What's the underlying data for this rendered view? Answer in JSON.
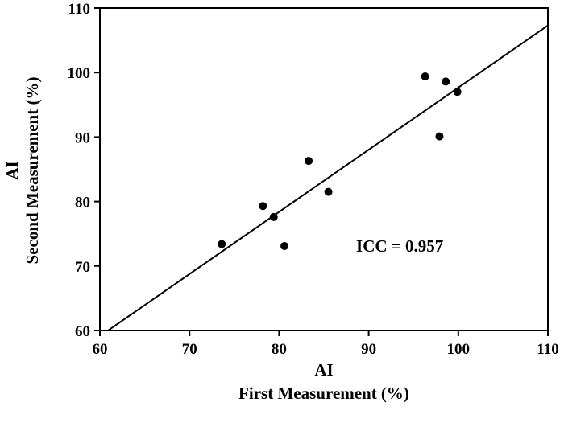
{
  "chart_data": {
    "type": "scatter",
    "title": "",
    "xlabel_line1": "AI",
    "xlabel_line2": "First Measurement (%)",
    "ylabel_line1": "AI",
    "ylabel_line2": "Second Measurement (%)",
    "xlim": [
      60,
      110
    ],
    "ylim": [
      60,
      110
    ],
    "x_ticks": [
      60,
      70,
      80,
      90,
      100,
      110
    ],
    "y_ticks": [
      60,
      70,
      80,
      90,
      100,
      110
    ],
    "grid": false,
    "legend": "none",
    "points": [
      {
        "x": 73.6,
        "y": 73.4
      },
      {
        "x": 78.2,
        "y": 79.3
      },
      {
        "x": 79.4,
        "y": 77.6
      },
      {
        "x": 80.6,
        "y": 73.1
      },
      {
        "x": 83.3,
        "y": 86.3
      },
      {
        "x": 85.5,
        "y": 81.5
      },
      {
        "x": 96.3,
        "y": 99.4
      },
      {
        "x": 97.9,
        "y": 90.1
      },
      {
        "x": 98.6,
        "y": 98.6
      },
      {
        "x": 99.9,
        "y": 97.0
      }
    ],
    "fit_line": {
      "x": [
        60.5,
        110
      ],
      "y": [
        59.6,
        107.3
      ]
    },
    "annotation": "ICC = 0.957",
    "annotation_position": {
      "x": 88.6,
      "y": 72.2
    },
    "colors": {
      "marker": "#000000",
      "line": "#000000",
      "axis": "#000000"
    }
  }
}
